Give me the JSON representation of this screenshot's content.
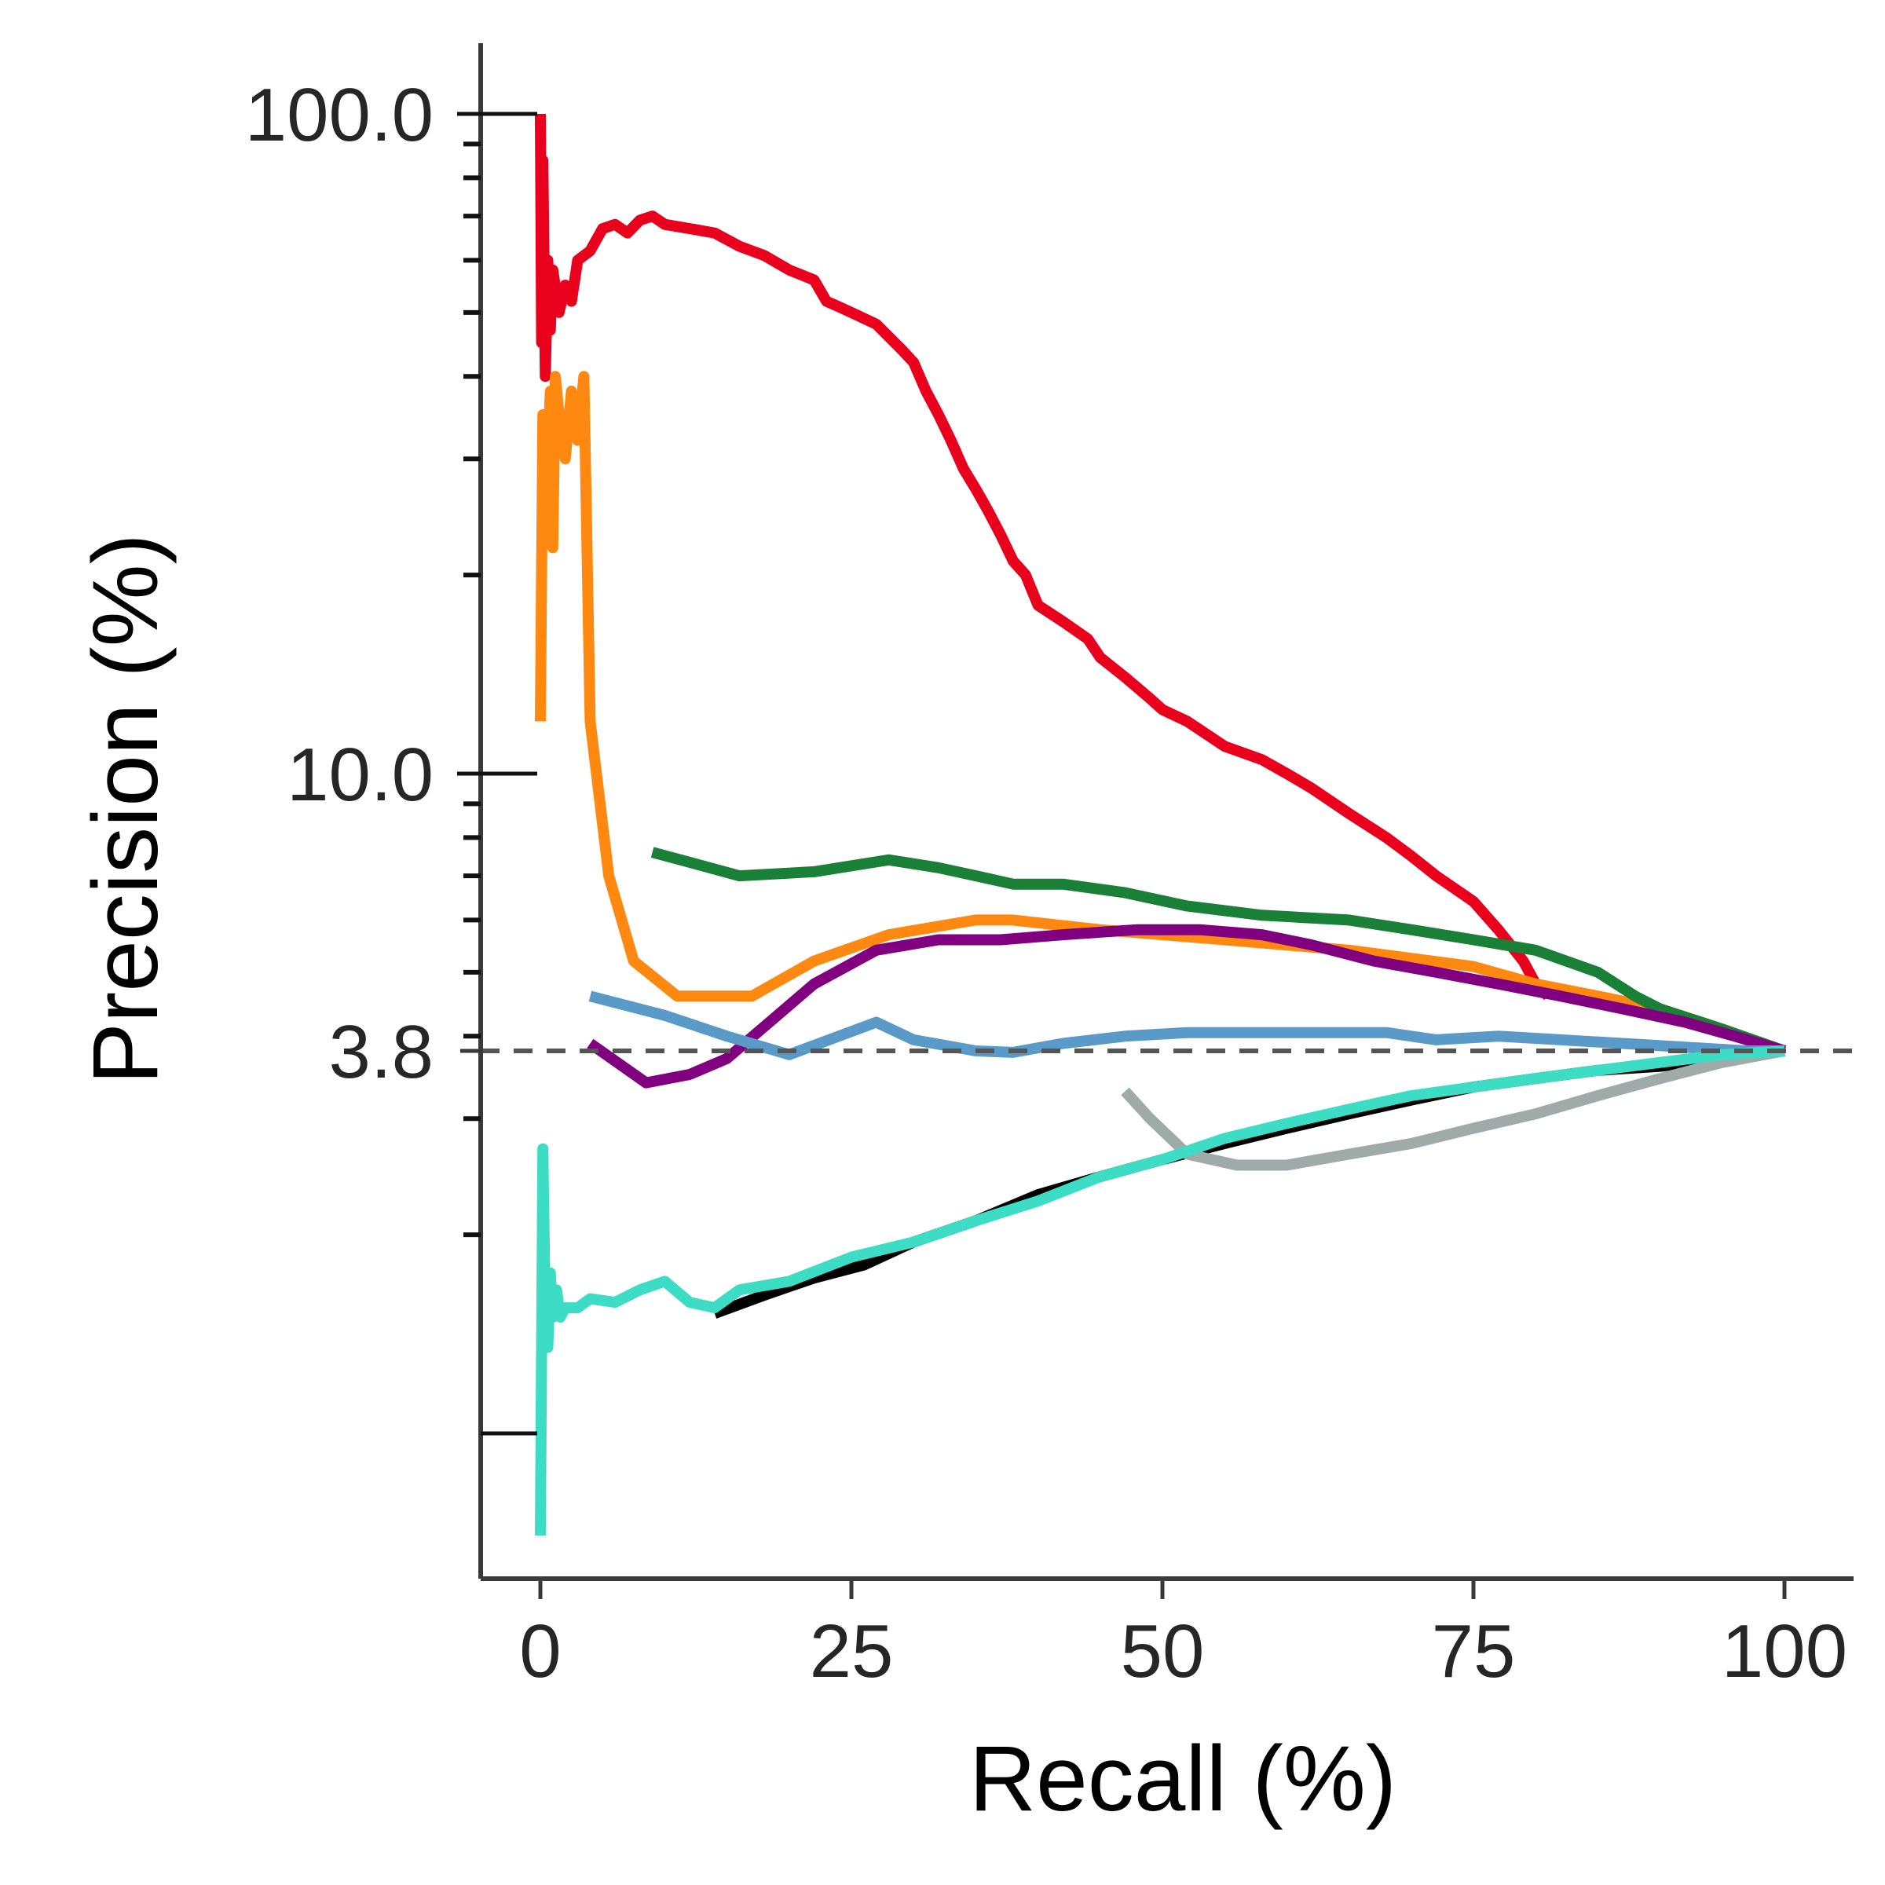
{
  "chart_data": {
    "type": "line",
    "title": "",
    "xlabel": "Recall (%)",
    "ylabel": "Precision (%)",
    "xlim": [
      -2,
      105
    ],
    "ylim": [
      0.7,
      130
    ],
    "yscale": "log",
    "grid": false,
    "legend": "none",
    "x_ticks": [
      {
        "value": 0,
        "label": "0"
      },
      {
        "value": 25,
        "label": "25"
      },
      {
        "value": 50,
        "label": "50"
      },
      {
        "value": 75,
        "label": "75"
      },
      {
        "value": 100,
        "label": "100"
      }
    ],
    "y_ticks": [
      {
        "value": 100,
        "label": "100.0"
      },
      {
        "value": 10,
        "label": "10.0"
      },
      {
        "value": 3.8,
        "label": "3.8"
      }
    ],
    "baseline": {
      "y": 3.8,
      "color": "#555555",
      "style": "dashed"
    },
    "series": [
      {
        "color": "#e8001c",
        "x": [
          0,
          0.1,
          0.2,
          0.4,
          0.6,
          0.8,
          1.0,
          1.5,
          2,
          2.5,
          3,
          4,
          5,
          6,
          7,
          8,
          9,
          10,
          12,
          14,
          16,
          18,
          20,
          22,
          23,
          24,
          25,
          27,
          29,
          30,
          31,
          32,
          33,
          34,
          35,
          36,
          37,
          38,
          39,
          40,
          42,
          44,
          45,
          47,
          49,
          50,
          52,
          55,
          58,
          60,
          62,
          65,
          68,
          70,
          72,
          75,
          77,
          79,
          80,
          81
        ],
        "y": [
          100,
          45,
          85,
          40,
          60,
          47,
          58,
          50,
          55,
          52,
          60,
          62,
          67,
          68,
          66,
          69,
          70,
          68,
          67,
          66,
          63,
          61,
          58,
          56,
          52,
          51,
          50,
          48,
          44,
          42,
          38,
          35,
          32,
          29,
          27,
          25,
          23,
          21,
          20,
          18,
          17,
          16,
          15,
          14,
          13,
          12.5,
          12,
          11,
          10.5,
          10,
          9.5,
          8.7,
          8.0,
          7.5,
          7.0,
          6.4,
          5.8,
          5.2,
          4.8,
          4.6
        ]
      },
      {
        "color": "#ff8811",
        "x": [
          0,
          0.2,
          0.4,
          0.8,
          1.0,
          1.2,
          1.5,
          2,
          2.5,
          3,
          3.5,
          4,
          5.5,
          7.5,
          11,
          17,
          22,
          28,
          35,
          38,
          45,
          55,
          65,
          75,
          80,
          85,
          90,
          95,
          100
        ],
        "y": [
          12,
          35,
          25,
          38,
          22,
          40,
          35,
          30,
          38,
          32,
          40,
          12,
          7,
          5.2,
          4.6,
          4.6,
          5.2,
          5.7,
          6.0,
          6.0,
          5.8,
          5.6,
          5.4,
          5.1,
          4.8,
          4.6,
          4.4,
          4.1,
          3.8
        ]
      },
      {
        "color": "#1a7f37",
        "x": [
          9,
          16,
          22,
          28,
          32,
          35,
          38,
          42,
          47,
          52,
          58,
          65,
          70,
          75,
          80,
          85,
          88,
          90,
          95,
          100
        ],
        "y": [
          7.6,
          7.0,
          7.1,
          7.4,
          7.2,
          7.0,
          6.8,
          6.8,
          6.6,
          6.3,
          6.1,
          6.0,
          5.8,
          5.6,
          5.4,
          5.0,
          4.6,
          4.4,
          4.1,
          3.8
        ]
      },
      {
        "color": "#800080",
        "x": [
          4,
          8.5,
          12,
          15,
          22,
          27,
          32,
          37,
          42,
          48,
          53,
          58,
          62,
          67,
          72,
          77,
          82,
          87,
          92,
          96,
          100
        ],
        "y": [
          3.9,
          3.4,
          3.5,
          3.7,
          4.8,
          5.4,
          5.6,
          5.6,
          5.7,
          5.8,
          5.8,
          5.7,
          5.5,
          5.2,
          5.0,
          4.8,
          4.6,
          4.4,
          4.2,
          4.0,
          3.8
        ]
      },
      {
        "color": "#5a9ac9",
        "x": [
          4,
          10,
          15,
          20,
          27,
          30,
          35,
          38,
          42,
          47,
          52,
          57,
          62,
          68,
          72,
          77,
          82,
          87,
          92,
          97,
          100
        ],
        "y": [
          4.6,
          4.3,
          4.0,
          3.75,
          4.2,
          3.95,
          3.8,
          3.78,
          3.9,
          4.0,
          4.05,
          4.05,
          4.05,
          4.05,
          3.95,
          4.0,
          3.95,
          3.9,
          3.85,
          3.8,
          3.8
        ]
      },
      {
        "color": "#000000",
        "x": [
          14,
          18,
          22,
          26,
          30,
          35,
          40,
          45,
          50,
          55,
          60,
          65,
          70,
          75,
          80,
          85,
          90,
          95,
          100
        ],
        "y": [
          1.52,
          1.62,
          1.72,
          1.8,
          1.95,
          2.1,
          2.3,
          2.45,
          2.6,
          2.75,
          2.9,
          3.05,
          3.2,
          3.35,
          3.45,
          3.55,
          3.6,
          3.7,
          3.8
        ]
      },
      {
        "color": "#a0aaa8",
        "x": [
          47,
          49,
          52,
          56,
          60,
          65,
          70,
          75,
          80,
          85,
          90,
          95,
          100
        ],
        "y": [
          3.3,
          3.0,
          2.65,
          2.55,
          2.55,
          2.65,
          2.75,
          2.9,
          3.05,
          3.25,
          3.45,
          3.65,
          3.8
        ]
      },
      {
        "color": "#3dddc5",
        "x": [
          0,
          0.2,
          0.4,
          0.6,
          0.8,
          1.0,
          1.3,
          1.6,
          2,
          3,
          4,
          6,
          8,
          10,
          12,
          14,
          16,
          20,
          25,
          30,
          35,
          40,
          45,
          50,
          55,
          60,
          65,
          70,
          75,
          80,
          85,
          90,
          95,
          100
        ],
        "y": [
          0.7,
          2.7,
          1.5,
          1.35,
          1.75,
          1.5,
          1.65,
          1.5,
          1.55,
          1.55,
          1.6,
          1.58,
          1.65,
          1.7,
          1.58,
          1.55,
          1.65,
          1.7,
          1.85,
          1.95,
          2.1,
          2.25,
          2.45,
          2.6,
          2.8,
          2.95,
          3.1,
          3.25,
          3.35,
          3.45,
          3.55,
          3.65,
          3.75,
          3.8
        ]
      }
    ]
  }
}
